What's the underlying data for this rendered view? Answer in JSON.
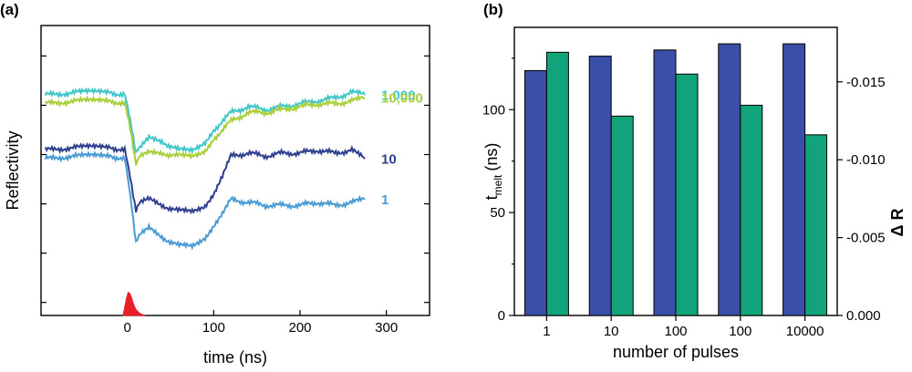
{
  "chart_data": [
    {
      "panel": "(a)",
      "type": "line",
      "xlabel": "time (ns)",
      "ylabel": "Reflectivity",
      "xlim": [
        -100,
        350
      ],
      "ylim": [
        0,
        1
      ],
      "xticks": [
        0,
        100,
        200,
        300
      ],
      "yticks_labeled": false,
      "series": [
        {
          "name": "1,000",
          "color": "#3ec6c9",
          "points": [
            [
              -95,
              0.76
            ],
            [
              -60,
              0.77
            ],
            [
              -20,
              0.77
            ],
            [
              -3,
              0.76
            ],
            [
              5,
              0.65
            ],
            [
              10,
              0.56
            ],
            [
              15,
              0.58
            ],
            [
              25,
              0.61
            ],
            [
              40,
              0.6
            ],
            [
              60,
              0.57
            ],
            [
              75,
              0.57
            ],
            [
              90,
              0.6
            ],
            [
              100,
              0.64
            ],
            [
              120,
              0.7
            ],
            [
              140,
              0.72
            ],
            [
              160,
              0.71
            ],
            [
              180,
              0.72
            ],
            [
              200,
              0.73
            ],
            [
              220,
              0.74
            ],
            [
              240,
              0.75
            ],
            [
              260,
              0.77
            ],
            [
              275,
              0.76
            ]
          ]
        },
        {
          "name": "10,000",
          "color": "#a8cf3a",
          "points": [
            [
              -95,
              0.73
            ],
            [
              -60,
              0.74
            ],
            [
              -20,
              0.74
            ],
            [
              -3,
              0.73
            ],
            [
              5,
              0.62
            ],
            [
              10,
              0.52
            ],
            [
              15,
              0.55
            ],
            [
              25,
              0.56
            ],
            [
              40,
              0.56
            ],
            [
              60,
              0.55
            ],
            [
              75,
              0.55
            ],
            [
              90,
              0.57
            ],
            [
              100,
              0.61
            ],
            [
              120,
              0.67
            ],
            [
              140,
              0.7
            ],
            [
              160,
              0.7
            ],
            [
              180,
              0.71
            ],
            [
              200,
              0.72
            ],
            [
              220,
              0.73
            ],
            [
              240,
              0.73
            ],
            [
              260,
              0.74
            ],
            [
              275,
              0.75
            ]
          ]
        },
        {
          "name": "10",
          "color": "#2f3f8f",
          "points": [
            [
              -95,
              0.57
            ],
            [
              -60,
              0.58
            ],
            [
              -20,
              0.58
            ],
            [
              -3,
              0.57
            ],
            [
              5,
              0.45
            ],
            [
              10,
              0.36
            ],
            [
              15,
              0.39
            ],
            [
              25,
              0.4
            ],
            [
              40,
              0.38
            ],
            [
              60,
              0.36
            ],
            [
              75,
              0.36
            ],
            [
              90,
              0.38
            ],
            [
              100,
              0.42
            ],
            [
              110,
              0.48
            ],
            [
              120,
              0.55
            ],
            [
              140,
              0.56
            ],
            [
              160,
              0.55
            ],
            [
              180,
              0.56
            ],
            [
              200,
              0.56
            ],
            [
              220,
              0.57
            ],
            [
              240,
              0.56
            ],
            [
              260,
              0.57
            ],
            [
              275,
              0.54
            ]
          ]
        },
        {
          "name": "1",
          "color": "#4a9ad3",
          "points": [
            [
              -95,
              0.54
            ],
            [
              -60,
              0.55
            ],
            [
              -20,
              0.55
            ],
            [
              -3,
              0.54
            ],
            [
              5,
              0.38
            ],
            [
              10,
              0.25
            ],
            [
              15,
              0.28
            ],
            [
              25,
              0.3
            ],
            [
              40,
              0.27
            ],
            [
              60,
              0.24
            ],
            [
              75,
              0.24
            ],
            [
              90,
              0.27
            ],
            [
              100,
              0.31
            ],
            [
              110,
              0.35
            ],
            [
              120,
              0.4
            ],
            [
              140,
              0.39
            ],
            [
              160,
              0.38
            ],
            [
              180,
              0.38
            ],
            [
              200,
              0.38
            ],
            [
              220,
              0.39
            ],
            [
              240,
              0.38
            ],
            [
              260,
              0.39
            ],
            [
              275,
              0.4
            ]
          ]
        },
        {
          "name": "pulse",
          "color": "#e8202a",
          "fill": true,
          "points": [
            [
              -5,
              0.0
            ],
            [
              -3,
              0.03
            ],
            [
              -1,
              0.06
            ],
            [
              1,
              0.08
            ],
            [
              3,
              0.075
            ],
            [
              5,
              0.06
            ],
            [
              7,
              0.04
            ],
            [
              10,
              0.02
            ],
            [
              14,
              0.008
            ],
            [
              20,
              0.0
            ]
          ]
        }
      ]
    },
    {
      "panel": "(b)",
      "type": "bar",
      "xlabel": "number of pulses",
      "ylabel_left": "t",
      "ylabel_left_sub": "melt",
      "ylabel_left_unit": "(ns)",
      "ylabel_right": "Δ R",
      "categories": [
        "1",
        "10",
        "100",
        "100",
        "10000"
      ],
      "ylim_left": [
        0,
        140
      ],
      "yticks_left": [
        0,
        50,
        100
      ],
      "ylim_right": [
        0.0,
        -0.0185
      ],
      "yticks_right": [
        "0.000",
        "-0.005",
        "-0.010",
        "-0.015"
      ],
      "yticks_right_values": [
        0.0,
        -0.005,
        -0.01,
        -0.015
      ],
      "series": [
        {
          "name": "t_melt (ns)",
          "axis": "left",
          "color": "#3a4fa7",
          "values": [
            119,
            126,
            129,
            132,
            132
          ]
        },
        {
          "name": "Δ R",
          "axis": "right",
          "color": "#11a37a",
          "values": [
            -0.0169,
            -0.0128,
            -0.0155,
            -0.0135,
            -0.0116
          ]
        }
      ]
    }
  ]
}
